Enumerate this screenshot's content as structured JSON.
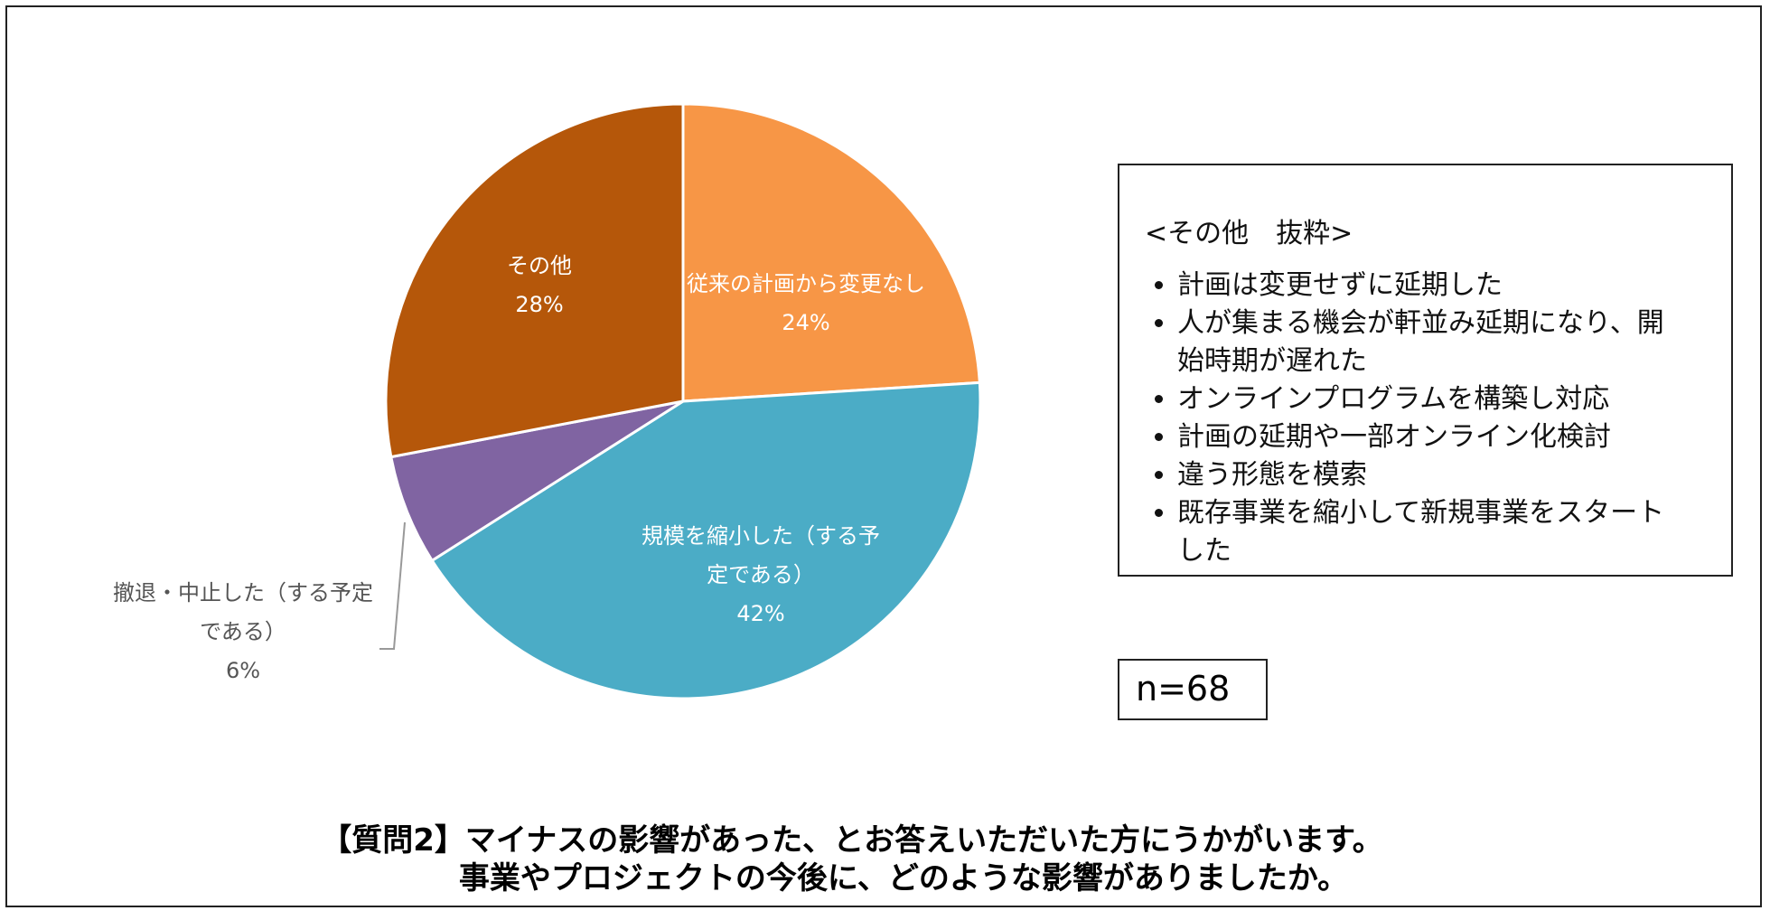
{
  "chart_data": {
    "type": "pie",
    "title": [
      "【質問2】マイナスの影響があった、とお答えいただいた方にうかがいます。",
      "事業やプロジェクトの今後に、どのような影響がありましたか。"
    ],
    "categories": [
      "従来の計画から変更なし",
      "規模を縮小した（する予定である）",
      "撤退・中止した（する予定である）",
      "その他"
    ],
    "values": [
      24,
      42,
      6,
      28
    ],
    "value_labels": [
      "24%",
      "42%",
      "6%",
      "28%"
    ],
    "colors": [
      "#f79646",
      "#4bacc6",
      "#8064a2",
      "#b5570a"
    ],
    "note_title": "<その他　抜粋>",
    "note_items": [
      "計画は変更せずに延期した",
      "人が集まる機会が軒並み延期になり、開始時期が遅れた",
      "オンラインプログラムを構築し対応",
      "計画の延期や一部オンライン化検討",
      "違う形態を模索",
      "既存事業を縮小して新規事業をスタートした"
    ],
    "n_label": "n=68"
  }
}
